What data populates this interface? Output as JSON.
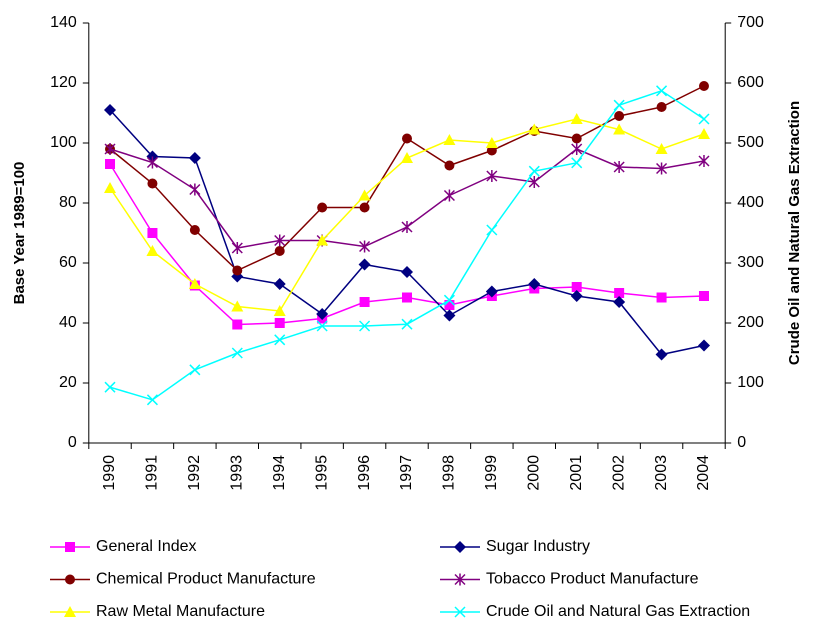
{
  "chart_data": {
    "type": "line",
    "ylabel": "Base Year 1989=100",
    "y2label": "Crude Oil and Natural Gas Extraction",
    "categories": [
      "1990",
      "1991",
      "1992",
      "1993",
      "1994",
      "1995",
      "1996",
      "1997",
      "1998",
      "1999",
      "2000",
      "2001",
      "2002",
      "2003",
      "2004"
    ],
    "ylim": [
      0,
      140
    ],
    "yticks": [
      0,
      20,
      40,
      60,
      80,
      100,
      120,
      140
    ],
    "y2lim": [
      0,
      700
    ],
    "y2ticks": [
      0,
      100,
      200,
      300,
      400,
      500,
      600,
      700
    ],
    "series": [
      {
        "name": "General Index",
        "color": "#ff00ff",
        "marker": "square",
        "values": [
          93,
          70,
          52.5,
          39.5,
          40,
          41.5,
          47,
          48.5,
          46,
          49,
          51.5,
          52,
          50,
          48.5,
          49
        ]
      },
      {
        "name": "Sugar Industry",
        "color": "#000080",
        "marker": "diamond",
        "values": [
          111,
          95.5,
          95,
          55.5,
          53,
          43,
          59.5,
          57,
          42.5,
          50.5,
          53,
          49,
          47,
          29.5,
          32.5
        ]
      },
      {
        "name": "Chemical Product Manufacture",
        "color": "#800000",
        "marker": "circle",
        "values": [
          98,
          86.5,
          71,
          57.5,
          64,
          78.5,
          78.5,
          101.5,
          92.5,
          97.5,
          104,
          101.5,
          109,
          112,
          119
        ]
      },
      {
        "name": "Tobacco Product Manufacture",
        "color": "#800080",
        "marker": "star",
        "values": [
          98,
          93.5,
          84.5,
          65,
          67.5,
          67.5,
          65.5,
          72,
          82.5,
          89,
          87,
          98,
          92,
          91.5,
          94
        ]
      },
      {
        "name": "Raw Metal Manufacture",
        "color": "#ffff00",
        "marker": "triangle",
        "values": [
          85,
          64,
          53,
          45.5,
          44,
          67.5,
          82.5,
          95,
          101,
          100,
          104.5,
          108,
          104.5,
          98,
          103
        ]
      },
      {
        "name": "Crude Oil and Natural Gas Extraction",
        "color": "#00ffff",
        "marker": "x",
        "axis": "y2",
        "values": [
          93,
          72,
          122,
          150,
          172,
          195,
          195,
          198,
          238,
          355,
          453,
          467,
          563,
          587,
          540
        ]
      }
    ]
  }
}
